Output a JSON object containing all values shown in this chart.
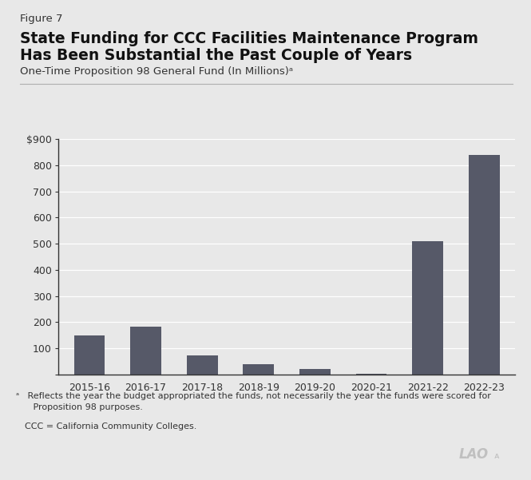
{
  "categories": [
    "2015-16",
    "2016-17",
    "2017-18",
    "2018-19",
    "2019-20",
    "2020-21",
    "2021-22",
    "2022-23"
  ],
  "values": [
    148,
    182,
    72,
    40,
    20,
    2,
    510,
    840
  ],
  "bar_color": "#565968",
  "background_color": "#e8e8e8",
  "figure_label": "Figure 7",
  "title_line1": "State Funding for CCC Facilities Maintenance Program",
  "title_line2": "Has Been Substantial the Past Couple of Years",
  "subtitle": "One-Time Proposition 98 General Fund (In Millions)ᵃ",
  "ytick_labels": [
    "",
    "100",
    "200",
    "300",
    "400",
    "500",
    "600",
    "700",
    "800",
    "$900"
  ],
  "ytick_values": [
    0,
    100,
    200,
    300,
    400,
    500,
    600,
    700,
    800,
    900
  ],
  "ylim": [
    0,
    900
  ],
  "footnote_a_super": "ᵃ",
  "footnote_a_text": " Reflects the year the budget appropriated the funds, not necessarily the year the funds were scored for\n   Proposition 98 purposes.",
  "footnote_b": "CCC = California Community Colleges."
}
